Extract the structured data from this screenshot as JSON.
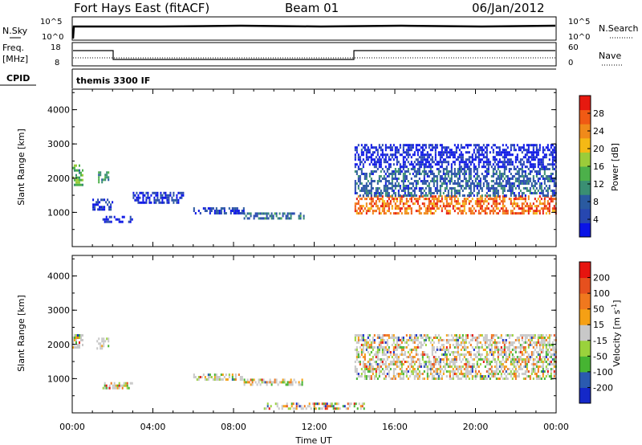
{
  "header": {
    "station": "Fort Hays East (fitACF)",
    "beam": "Beam 01",
    "date": "06/Jan/2012"
  },
  "status_panels": {
    "nsky_label": "N.Sky",
    "nsearch_label": "N.Search",
    "nsky_ticks": [
      "10^5",
      "10^0"
    ],
    "nsearch_ticks": [
      "10^5",
      "10^0"
    ],
    "freq_label_1": "Freq.",
    "freq_label_2": "[MHz]",
    "freq_ticks": [
      "18",
      "8"
    ],
    "nave_label": "Nave",
    "nave_ticks": [
      "60",
      "0"
    ],
    "cpid_label": "CPID",
    "cpid_value": "themis 3300 IF"
  },
  "chart_data": [
    {
      "type": "heatmap",
      "name": "power",
      "ylabel": "Slant Range [km]",
      "xlabel": "",
      "ylim": [
        0,
        4600
      ],
      "yticks": [
        "4000",
        "3000",
        "2000",
        "1000"
      ],
      "ytick_values": [
        4000,
        3000,
        2000,
        1000
      ],
      "xlim": [
        0,
        24
      ],
      "colorbar": {
        "label": "Power [dB]",
        "ticks": [
          "28",
          "24",
          "20",
          "16",
          "12",
          "8",
          "4"
        ],
        "colors": [
          "#0a14e6",
          "#2747b0",
          "#2a5aa0",
          "#3a8f73",
          "#4cb04a",
          "#9bcc3a",
          "#f5b915",
          "#f08a1a",
          "#f05a14",
          "#e6190f"
        ]
      },
      "regions": [
        {
          "t0": 0.0,
          "t1": 0.5,
          "r0": 1800,
          "r1": 2400,
          "level": 0.5
        },
        {
          "t0": 1.2,
          "t1": 1.8,
          "r0": 1900,
          "r1": 2200,
          "level": 0.4
        },
        {
          "t0": 1.0,
          "t1": 2.0,
          "r0": 1100,
          "r1": 1400,
          "level": 0.1
        },
        {
          "t0": 1.5,
          "t1": 3.0,
          "r0": 750,
          "r1": 900,
          "level": 0.1
        },
        {
          "t0": 3.0,
          "t1": 5.5,
          "r0": 1300,
          "r1": 1600,
          "level": 0.1
        },
        {
          "t0": 6.0,
          "t1": 8.5,
          "r0": 950,
          "r1": 1150,
          "level": 0.15
        },
        {
          "t0": 8.5,
          "t1": 11.5,
          "r0": 850,
          "r1": 1000,
          "level": 0.3
        },
        {
          "t0": 14.0,
          "t1": 24.0,
          "r0": 1000,
          "r1": 1500,
          "level": 0.9
        },
        {
          "t0": 14.0,
          "t1": 24.0,
          "r0": 1500,
          "r1": 2300,
          "level": 0.25
        },
        {
          "t0": 14.0,
          "t1": 24.0,
          "r0": 2300,
          "r1": 3000,
          "level": 0.05
        }
      ]
    },
    {
      "type": "heatmap",
      "name": "velocity",
      "ylabel": "Slant Range [km]",
      "xlabel": "Time UT",
      "ylim": [
        0,
        4600
      ],
      "yticks": [
        "4000",
        "3000",
        "2000",
        "1000"
      ],
      "ytick_values": [
        4000,
        3000,
        2000,
        1000
      ],
      "xlim": [
        0,
        24
      ],
      "xticks": [
        "00:00",
        "04:00",
        "08:00",
        "12:00",
        "16:00",
        "20:00",
        "00:00"
      ],
      "xtick_values": [
        0,
        4,
        8,
        12,
        16,
        20,
        24
      ],
      "colorbar": {
        "label": "Velocity [m s^-1]",
        "ticks": [
          "200",
          "100",
          "50",
          "15",
          "-15",
          "-50",
          "-100",
          "-200"
        ],
        "colors": [
          "#1428c8",
          "#2a5ab0",
          "#46b432",
          "#9ad23c",
          "#c8c8c8",
          "#f5a014",
          "#f0781e",
          "#e6501e",
          "#e6140f"
        ]
      },
      "regions": [
        {
          "t0": 0.0,
          "t1": 0.5,
          "r0": 1900,
          "r1": 2300,
          "level": 0.5
        },
        {
          "t0": 1.2,
          "t1": 1.8,
          "r0": 1900,
          "r1": 2200,
          "level": 0.7
        },
        {
          "t0": 1.5,
          "t1": 3.0,
          "r0": 750,
          "r1": 900,
          "level": 0.5
        },
        {
          "t0": 6.0,
          "t1": 8.5,
          "r0": 950,
          "r1": 1150,
          "level": 0.4
        },
        {
          "t0": 8.5,
          "t1": 11.5,
          "r0": 850,
          "r1": 1000,
          "level": 0.5
        },
        {
          "t0": 9.5,
          "t1": 14.5,
          "r0": 100,
          "r1": 300,
          "level": 0.3
        },
        {
          "t0": 14.0,
          "t1": 24.0,
          "r0": 1000,
          "r1": 2300,
          "level": 0.5
        }
      ]
    }
  ]
}
